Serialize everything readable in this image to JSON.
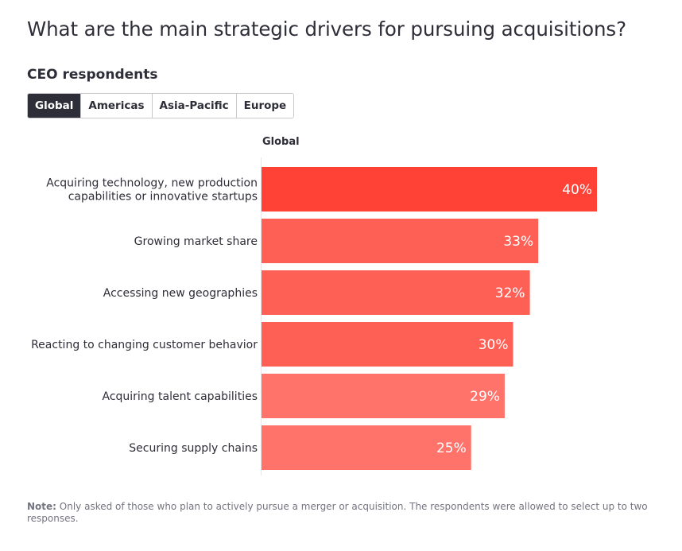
{
  "title": "What are the main strategic drivers for pursuing acquisitions?",
  "subtitle": "CEO respondents",
  "tabs": [
    {
      "label": "Global",
      "active": true
    },
    {
      "label": "Americas",
      "active": false
    },
    {
      "label": "Asia-Pacific",
      "active": false
    },
    {
      "label": "Europe",
      "active": false
    }
  ],
  "note": {
    "label": "Note:",
    "text": " Only asked of those who plan to actively pursue a merger or acquisition. The respondents were allowed to select up to two responses."
  },
  "chart_data": {
    "type": "bar",
    "orientation": "horizontal",
    "title": "Global",
    "categories": [
      [
        "Acquiring technology, new production",
        "capabilities or innovative startups"
      ],
      [
        "Growing market share"
      ],
      [
        "Accessing new geographies"
      ],
      [
        "Reacting to changing customer behavior"
      ],
      [
        "Acquiring talent capabilities"
      ],
      [
        "Securing supply chains"
      ]
    ],
    "values": [
      40,
      33,
      32,
      30,
      29,
      25
    ],
    "value_suffix": "%",
    "colors": [
      "#ff4136",
      "#ff6056",
      "#ff6056",
      "#ff6056",
      "#ff736a",
      "#ff736a"
    ],
    "xlim": [
      0,
      50
    ],
    "grid": false,
    "label_color": "#2e2e38",
    "axis_color": "#e6e6e9"
  }
}
